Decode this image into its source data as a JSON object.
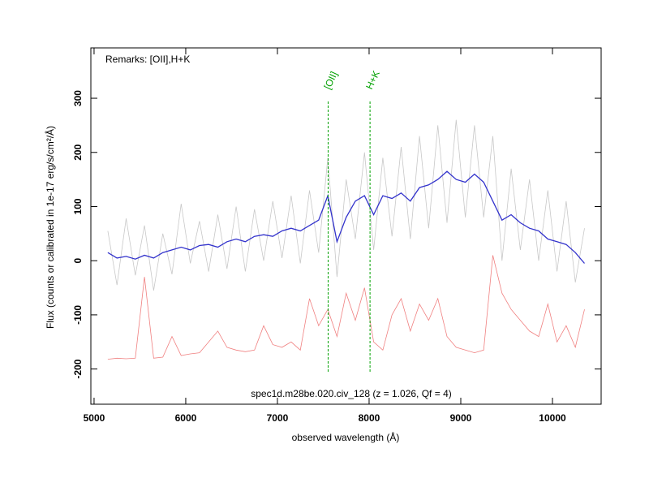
{
  "chart_data": {
    "type": "line",
    "xlabel": "observed wavelength (Å)",
    "ylabel": "Flux (counts or calibrated in 1e-17 erg/s/cm²/Å)",
    "remarks": "Remarks: [OII],H+K",
    "caption": "spec1d.m28be.020.civ_128 (z = 1.026, Qf = 4)",
    "xlim": [
      4965,
      10531
    ],
    "ylim": [
      -265,
      393
    ],
    "xticks": [
      5000,
      6000,
      7000,
      8000,
      9000,
      10000
    ],
    "yticks": [
      -200,
      -100,
      0,
      100,
      200,
      300
    ],
    "x": [
      5150,
      5250,
      5350,
      5450,
      5550,
      5650,
      5750,
      5850,
      5950,
      6050,
      6150,
      6250,
      6350,
      6450,
      6550,
      6650,
      6750,
      6850,
      6950,
      7050,
      7150,
      7250,
      7350,
      7450,
      7550,
      7650,
      7750,
      7850,
      7950,
      8050,
      8150,
      8250,
      8350,
      8450,
      8550,
      8650,
      8750,
      8850,
      8950,
      9050,
      9150,
      9250,
      9350,
      9450,
      9550,
      9650,
      9750,
      9850,
      9950,
      10050,
      10150,
      10250,
      10350
    ],
    "series": [
      {
        "color": "#c8c8c8",
        "values": [
          55,
          -45,
          78,
          -27,
          65,
          -55,
          50,
          -25,
          105,
          -5,
          73,
          -20,
          85,
          -15,
          100,
          -20,
          95,
          0,
          110,
          5,
          120,
          -5,
          130,
          15,
          190,
          -30,
          150,
          40,
          200,
          20,
          190,
          45,
          210,
          40,
          230,
          60,
          250,
          70,
          260,
          80,
          250,
          80,
          230,
          0,
          170,
          20,
          150,
          0,
          130,
          -20,
          110,
          -40,
          60
        ]
      },
      {
        "color": "#f08080",
        "values": [
          -182,
          -180,
          -181,
          -180,
          -30,
          -180,
          -178,
          -140,
          -175,
          -172,
          -170,
          -150,
          -130,
          -160,
          -165,
          -168,
          -165,
          -120,
          -155,
          -160,
          -150,
          -165,
          -70,
          -120,
          -90,
          -140,
          -60,
          -110,
          -50,
          -150,
          -165,
          -100,
          -70,
          -130,
          -80,
          -110,
          -70,
          -140,
          -160,
          -165,
          -170,
          -165,
          10,
          -60,
          -90,
          -110,
          -130,
          -140,
          -80,
          -150,
          -120,
          -160,
          -90
        ]
      },
      {
        "color": "#3333cc",
        "values": [
          15,
          5,
          8,
          3,
          10,
          5,
          15,
          20,
          25,
          20,
          28,
          30,
          25,
          35,
          40,
          35,
          45,
          48,
          45,
          55,
          60,
          55,
          65,
          75,
          120,
          35,
          80,
          110,
          120,
          85,
          120,
          115,
          125,
          110,
          135,
          140,
          150,
          165,
          150,
          145,
          160,
          145,
          110,
          75,
          85,
          70,
          60,
          55,
          40,
          35,
          30,
          15,
          -5
        ]
      }
    ],
    "lines": [
      {
        "label": "[OII]",
        "x": 7553,
        "color": "#00a000"
      },
      {
        "label": "H+K",
        "x": 8010,
        "color": "#00a000"
      }
    ]
  }
}
